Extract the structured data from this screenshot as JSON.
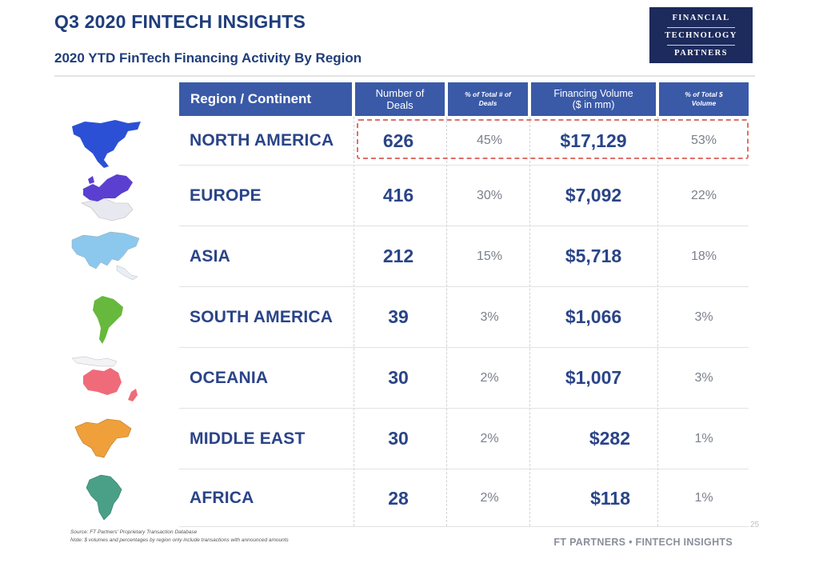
{
  "title": "Q3 2020 FINTECH INSIGHTS",
  "subtitle": "2020 YTD FinTech Financing Activity By Region",
  "logo": {
    "line1": "FINANCIAL",
    "line2": "TECHNOLOGY",
    "line3": "PARTNERS"
  },
  "table": {
    "headers": {
      "region": "Region / Continent",
      "deals_1": "Number of",
      "deals_2": "Deals",
      "pct_deals_1": "% of Total # of",
      "pct_deals_2": "Deals",
      "volume_1": "Financing Volume",
      "volume_2": "($ in mm)",
      "pct_volume_1": "% of Total $",
      "pct_volume_2": "Volume"
    },
    "rows": [
      {
        "region": "NORTH AMERICA",
        "deals": "626",
        "pct_deals": "45%",
        "volume": "$17,129",
        "pct_volume": "53%",
        "map_color": "#2b50d6"
      },
      {
        "region": "EUROPE",
        "deals": "416",
        "pct_deals": "30%",
        "volume": "$7,092",
        "pct_volume": "22%",
        "map_color": "#5b3fd0"
      },
      {
        "region": "ASIA",
        "deals": "212",
        "pct_deals": "15%",
        "volume": "$5,718",
        "pct_volume": "18%",
        "map_color": "#8cc8ee"
      },
      {
        "region": "SOUTH AMERICA",
        "deals": "39",
        "pct_deals": "3%",
        "volume": "$1,066",
        "pct_volume": "3%",
        "map_color": "#66b93c"
      },
      {
        "region": "OCEANIA",
        "deals": "30",
        "pct_deals": "2%",
        "volume": "$1,007",
        "pct_volume": "3%",
        "map_color": "#ef6b7a"
      },
      {
        "region": "MIDDLE EAST",
        "deals": "30",
        "pct_deals": "2%",
        "volume": "$282",
        "pct_volume": "1%",
        "map_color": "#f0a03a"
      },
      {
        "region": "AFRICA",
        "deals": "28",
        "pct_deals": "2%",
        "volume": "$118",
        "pct_volume": "1%",
        "map_color": "#4aa086"
      }
    ]
  },
  "footnotes": {
    "source": "Source: FT Partners' Proprietary Transaction Database",
    "note": "Note: $ volumes and percentages by region only include transactions with announced amounts"
  },
  "footer_brand": "FT PARTNERS • FINTECH INSIGHTS",
  "page_number": "25",
  "colors": {
    "header_bg": "#3a5aa8",
    "title": "#1f3d7a",
    "highlight": "#e0706a"
  }
}
